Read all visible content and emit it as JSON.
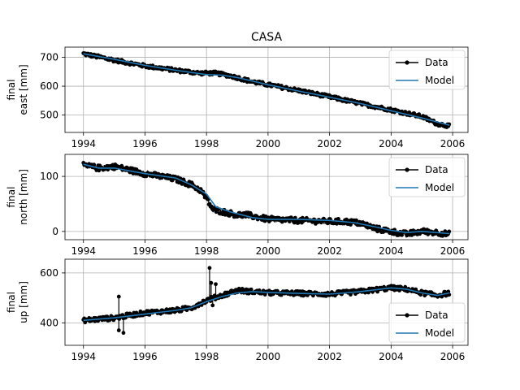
{
  "figure": {
    "title": "CASA"
  },
  "chart_data": [
    {
      "type": "line",
      "ylabel": [
        "final",
        "east [mm]"
      ],
      "xlim": [
        1993.4,
        2006.5
      ],
      "ylim": [
        440,
        735
      ],
      "xticks": [
        1994,
        1996,
        1998,
        2000,
        2002,
        2004,
        2006
      ],
      "yticks": [
        500,
        600,
        700
      ],
      "grid": true,
      "legend": {
        "position": "top-right",
        "entries": [
          "Data",
          "Model"
        ]
      },
      "series": [
        {
          "name": "Data",
          "color": "#000000",
          "marker": "dot",
          "noise": 6,
          "x": [
            1994.0,
            1995.0,
            1996.0,
            1997.0,
            1997.8,
            1998.3,
            1998.8,
            1999.5,
            2000.0,
            2001.0,
            2002.0,
            2003.0,
            2004.0,
            2005.0,
            2005.5,
            2005.9
          ],
          "y": [
            712,
            690,
            670,
            655,
            645,
            645,
            635,
            615,
            605,
            585,
            563,
            540,
            518,
            495,
            470,
            462
          ]
        },
        {
          "name": "Model",
          "color": "#1f77b4",
          "x": [
            1994.0,
            1995.0,
            1996.0,
            1997.0,
            1998.0,
            1998.5,
            1999.0,
            2000.0,
            2001.0,
            2002.0,
            2003.0,
            2004.0,
            2005.0,
            2005.9
          ],
          "y": [
            712,
            693,
            672,
            655,
            640,
            638,
            630,
            605,
            583,
            562,
            540,
            515,
            490,
            465
          ]
        }
      ]
    },
    {
      "type": "line",
      "ylabel": [
        "final",
        "north [mm]"
      ],
      "xlim": [
        1993.4,
        2006.5
      ],
      "ylim": [
        -15,
        140
      ],
      "xticks": [
        1994,
        1996,
        1998,
        2000,
        2002,
        2004,
        2006
      ],
      "yticks": [
        0,
        100
      ],
      "grid": true,
      "legend": {
        "position": "top-right",
        "entries": [
          "Data",
          "Model"
        ]
      },
      "series": [
        {
          "name": "Data",
          "color": "#000000",
          "marker": "dot",
          "noise": 5,
          "x": [
            1994.0,
            1994.5,
            1995.0,
            1996.0,
            1996.5,
            1997.0,
            1997.5,
            1997.8,
            1998.0,
            1998.2,
            1998.6,
            1999.0,
            1999.3,
            2000.0,
            2001.0,
            2002.0,
            2002.5,
            2003.0,
            2003.5,
            2004.0,
            2004.5,
            2005.0,
            2005.5,
            2005.9
          ],
          "y": [
            120,
            115,
            118,
            105,
            100,
            95,
            85,
            75,
            60,
            40,
            35,
            30,
            30,
            22,
            20,
            18,
            18,
            15,
            5,
            0,
            -5,
            0,
            -2,
            -5
          ]
        },
        {
          "name": "Model",
          "color": "#1f77b4",
          "x": [
            1994.0,
            1994.5,
            1995.0,
            1996.0,
            1997.0,
            1997.5,
            1998.0,
            1998.3,
            1998.8,
            1999.5,
            2000.0,
            2001.0,
            2002.0,
            2002.8,
            2003.5,
            2004.0,
            2004.5,
            2005.0,
            2005.9
          ],
          "y": [
            122,
            115,
            115,
            105,
            97,
            85,
            68,
            45,
            35,
            25,
            22,
            22,
            20,
            16,
            8,
            2,
            -2,
            0,
            -4
          ]
        }
      ]
    },
    {
      "type": "line",
      "ylabel": [
        "final",
        "up [mm]"
      ],
      "xlim": [
        1993.4,
        2006.5
      ],
      "ylim": [
        310,
        655
      ],
      "xticks": [
        1994,
        1996,
        1998,
        2000,
        2002,
        2004,
        2006
      ],
      "yticks": [
        400,
        600
      ],
      "grid": true,
      "legend": {
        "position": "bottom-right",
        "entries": [
          "Data",
          "Model"
        ]
      },
      "series": [
        {
          "name": "Data",
          "color": "#000000",
          "marker": "dot",
          "noise": 9,
          "x": [
            1994.0,
            1995.0,
            1996.0,
            1997.0,
            1997.5,
            1998.0,
            1998.5,
            1999.0,
            1999.5,
            2000.0,
            2001.0,
            2002.0,
            2003.0,
            2004.0,
            2004.5,
            2005.0,
            2005.5,
            2005.9
          ],
          "y": [
            410,
            420,
            440,
            450,
            460,
            490,
            510,
            530,
            525,
            520,
            518,
            515,
            525,
            540,
            535,
            520,
            510,
            520
          ]
        },
        {
          "name": "Model",
          "color": "#1f77b4",
          "x": [
            1994.0,
            1995.0,
            1996.0,
            1997.0,
            1997.5,
            1998.0,
            1998.5,
            1999.0,
            1999.5,
            2000.0,
            2001.0,
            2002.0,
            2003.0,
            2004.0,
            2004.5,
            2005.0,
            2005.5,
            2005.9
          ],
          "y": [
            410,
            420,
            435,
            450,
            460,
            485,
            505,
            520,
            525,
            522,
            518,
            515,
            525,
            540,
            535,
            520,
            510,
            520
          ]
        }
      ],
      "outliers": [
        {
          "x": 1995.15,
          "y": 505
        },
        {
          "x": 1995.15,
          "y": 370
        },
        {
          "x": 1995.3,
          "y": 360
        },
        {
          "x": 1998.1,
          "y": 620
        },
        {
          "x": 1998.15,
          "y": 560
        },
        {
          "x": 1998.2,
          "y": 470
        },
        {
          "x": 1998.3,
          "y": 555
        }
      ]
    }
  ]
}
